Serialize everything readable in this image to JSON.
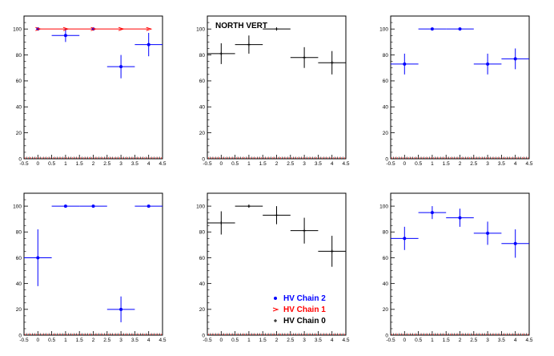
{
  "colors": {
    "chain2": "#0000ff",
    "chain1": "#ff0000",
    "chain0": "#000000",
    "axis": "#000000"
  },
  "chart_data": [
    {
      "type": "scatter",
      "panel": "top-left",
      "title": "",
      "xlim": [
        -0.5,
        4.5
      ],
      "ylim": [
        0,
        110
      ],
      "x_ticks": [
        "-0.5",
        "0",
        "0.5",
        "1",
        "1.5",
        "2",
        "2.5",
        "3",
        "3.5",
        "4",
        "4.5"
      ],
      "y_ticks": [
        "0",
        "20",
        "40",
        "60",
        "80",
        "100"
      ],
      "series": [
        {
          "key": "chain2",
          "points": [
            {
              "x": 0,
              "y": 100,
              "xerr": 0,
              "yerr": 0
            },
            {
              "x": 1,
              "y": 95,
              "xerr": 0.5,
              "yerr": 5
            },
            {
              "x": 2,
              "y": 100,
              "xerr": 0,
              "yerr": 0
            },
            {
              "x": 3,
              "y": 71,
              "xerr": 0.5,
              "yerr": 9
            },
            {
              "x": 4,
              "y": 88,
              "xerr": 0.5,
              "yerr": 9
            }
          ]
        },
        {
          "key": "chain1",
          "points": [
            {
              "x": 0,
              "y": 100,
              "xerr": 0,
              "yerr": 0
            },
            {
              "x": 1,
              "y": 100,
              "xerr": 0,
              "yerr": 0
            },
            {
              "x": 2,
              "y": 100,
              "xerr": 0,
              "yerr": 0
            },
            {
              "x": 3,
              "y": 100,
              "xerr": 0,
              "yerr": 0
            },
            {
              "x": 4,
              "y": 100,
              "xerr": 0,
              "yerr": 0
            }
          ]
        }
      ],
      "red_line": {
        "y": 100,
        "x": [
          0,
          4
        ]
      }
    },
    {
      "type": "scatter",
      "panel": "top-middle",
      "title": "NORTH VERT",
      "xlim": [
        -0.5,
        4.5
      ],
      "ylim": [
        0,
        110
      ],
      "x_ticks": [
        "-0.5",
        "0",
        "0.5",
        "1",
        "1.5",
        "2",
        "2.5",
        "3",
        "3.5",
        "4",
        "4.5"
      ],
      "y_ticks": [
        "0",
        "20",
        "40",
        "60",
        "80",
        "100"
      ],
      "series": [
        {
          "key": "chain0",
          "points": [
            {
              "x": 0,
              "y": 81,
              "xerr": 0.5,
              "yerr": 8
            },
            {
              "x": 1,
              "y": 88,
              "xerr": 0.5,
              "yerr": 7
            },
            {
              "x": 2,
              "y": 100,
              "xerr": 0.5,
              "yerr": 1
            },
            {
              "x": 3,
              "y": 78,
              "xerr": 0.5,
              "yerr": 8
            },
            {
              "x": 4,
              "y": 74,
              "xerr": 0.5,
              "yerr": 9
            }
          ]
        }
      ]
    },
    {
      "type": "scatter",
      "panel": "top-right",
      "title": "",
      "xlim": [
        -0.5,
        4.5
      ],
      "ylim": [
        0,
        110
      ],
      "x_ticks": [
        "-0.5",
        "0",
        "0.5",
        "1",
        "1.5",
        "2",
        "2.5",
        "3",
        "3.5",
        "4",
        "4.5"
      ],
      "y_ticks": [
        "0",
        "20",
        "40",
        "60",
        "80",
        "100"
      ],
      "series": [
        {
          "key": "chain2",
          "points": [
            {
              "x": 0,
              "y": 73,
              "xerr": 0.5,
              "yerr": 8
            },
            {
              "x": 1,
              "y": 100,
              "xerr": 0.5,
              "yerr": 0
            },
            {
              "x": 2,
              "y": 100,
              "xerr": 0.5,
              "yerr": 0
            },
            {
              "x": 3,
              "y": 73,
              "xerr": 0.5,
              "yerr": 8
            },
            {
              "x": 4,
              "y": 77,
              "xerr": 0.5,
              "yerr": 8
            }
          ]
        }
      ]
    },
    {
      "type": "scatter",
      "panel": "bottom-left",
      "title": "",
      "xlim": [
        -0.5,
        4.5
      ],
      "ylim": [
        0,
        110
      ],
      "x_ticks": [
        "-0.5",
        "0",
        "0.5",
        "1",
        "1.5",
        "2",
        "2.5",
        "3",
        "3.5",
        "4",
        "4.5"
      ],
      "y_ticks": [
        "0",
        "20",
        "40",
        "60",
        "80",
        "100"
      ],
      "series": [
        {
          "key": "chain2",
          "points": [
            {
              "x": 0,
              "y": 60,
              "xerr": 0.5,
              "yerr": 22
            },
            {
              "x": 1,
              "y": 100,
              "xerr": 0.5,
              "yerr": 0
            },
            {
              "x": 2,
              "y": 100,
              "xerr": 0.5,
              "yerr": 0
            },
            {
              "x": 3,
              "y": 20,
              "xerr": 0.5,
              "yerr": 10
            },
            {
              "x": 4,
              "y": 100,
              "xerr": 0.5,
              "yerr": 0
            }
          ]
        }
      ]
    },
    {
      "type": "scatter",
      "panel": "bottom-middle",
      "title": "",
      "xlim": [
        -0.5,
        4.5
      ],
      "ylim": [
        0,
        110
      ],
      "x_ticks": [
        "-0.5",
        "0",
        "0.5",
        "1",
        "1.5",
        "2",
        "2.5",
        "3",
        "3.5",
        "4",
        "4.5"
      ],
      "y_ticks": [
        "0",
        "20",
        "40",
        "60",
        "80",
        "100"
      ],
      "series": [
        {
          "key": "chain0",
          "points": [
            {
              "x": 0,
              "y": 87,
              "xerr": 0.5,
              "yerr": 9
            },
            {
              "x": 1,
              "y": 100,
              "xerr": 0.5,
              "yerr": 1
            },
            {
              "x": 2,
              "y": 93,
              "xerr": 0.5,
              "yerr": 7
            },
            {
              "x": 3,
              "y": 81,
              "xerr": 0.5,
              "yerr": 10
            },
            {
              "x": 4,
              "y": 65,
              "xerr": 0.5,
              "yerr": 12
            }
          ]
        }
      ],
      "legend": {
        "placement": "bottom-right",
        "entries": [
          {
            "label": "HV Chain 2",
            "key": "chain2"
          },
          {
            "label": "HV Chain 1",
            "key": "chain1"
          },
          {
            "label": "HV Chain 0",
            "key": "chain0"
          }
        ]
      }
    },
    {
      "type": "scatter",
      "panel": "bottom-right",
      "title": "",
      "xlim": [
        -0.5,
        4.5
      ],
      "ylim": [
        0,
        110
      ],
      "x_ticks": [
        "-0.5",
        "0",
        "0.5",
        "1",
        "1.5",
        "2",
        "2.5",
        "3",
        "3.5",
        "4",
        "4.5"
      ],
      "y_ticks": [
        "0",
        "20",
        "40",
        "60",
        "80",
        "100"
      ],
      "series": [
        {
          "key": "chain2",
          "points": [
            {
              "x": 0,
              "y": 75,
              "xerr": 0.5,
              "yerr": 9
            },
            {
              "x": 1,
              "y": 95,
              "xerr": 0.5,
              "yerr": 5
            },
            {
              "x": 2,
              "y": 91,
              "xerr": 0.5,
              "yerr": 7
            },
            {
              "x": 3,
              "y": 79,
              "xerr": 0.5,
              "yerr": 9
            },
            {
              "x": 4,
              "y": 71,
              "xerr": 0.5,
              "yerr": 11
            }
          ]
        }
      ]
    }
  ]
}
